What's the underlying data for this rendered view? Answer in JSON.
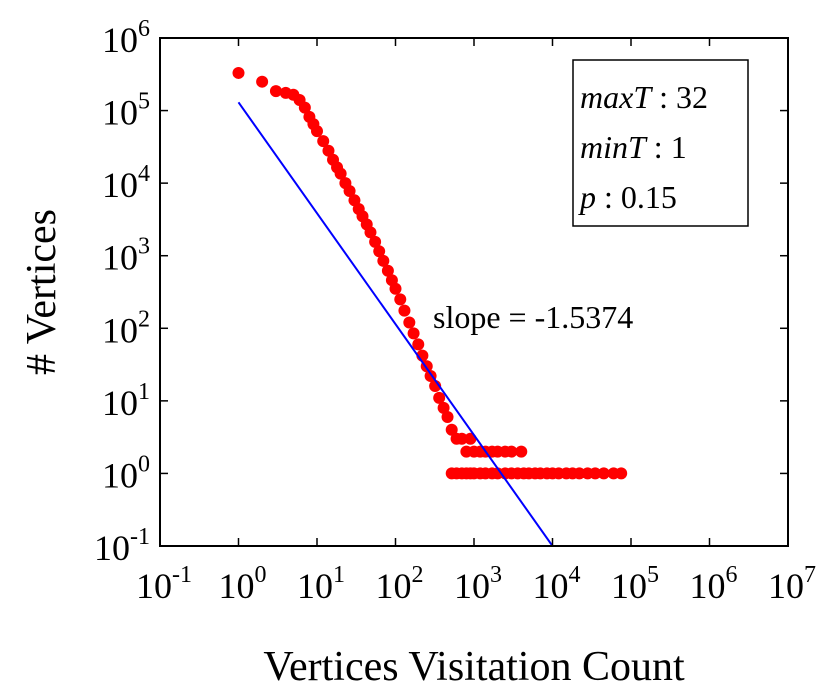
{
  "chart_data": {
    "type": "scatter",
    "xlabel": "Vertices Visitation Count",
    "ylabel": "# Vertices",
    "x_scale": "log",
    "y_scale": "log",
    "xlim": [
      0.1,
      10000000
    ],
    "ylim": [
      0.1,
      1000000
    ],
    "x_ticks": [
      {
        "base": "10",
        "exp": "-1",
        "value": 0.1
      },
      {
        "base": "10",
        "exp": "0",
        "value": 1
      },
      {
        "base": "10",
        "exp": "1",
        "value": 10
      },
      {
        "base": "10",
        "exp": "2",
        "value": 100
      },
      {
        "base": "10",
        "exp": "3",
        "value": 1000
      },
      {
        "base": "10",
        "exp": "4",
        "value": 10000
      },
      {
        "base": "10",
        "exp": "5",
        "value": 100000
      },
      {
        "base": "10",
        "exp": "6",
        "value": 1000000
      },
      {
        "base": "10",
        "exp": "7",
        "value": 10000000
      }
    ],
    "y_ticks": [
      {
        "base": "10",
        "exp": "-1",
        "value": 0.1
      },
      {
        "base": "10",
        "exp": "0",
        "value": 1
      },
      {
        "base": "10",
        "exp": "1",
        "value": 10
      },
      {
        "base": "10",
        "exp": "2",
        "value": 100
      },
      {
        "base": "10",
        "exp": "3",
        "value": 1000
      },
      {
        "base": "10",
        "exp": "4",
        "value": 10000
      },
      {
        "base": "10",
        "exp": "5",
        "value": 100000
      },
      {
        "base": "10",
        "exp": "6",
        "value": 1000000
      }
    ],
    "grid": false,
    "series": [
      {
        "color": "#ff0000",
        "marker": "circle",
        "points": [
          [
            1,
            330000
          ],
          [
            2,
            250000
          ],
          [
            3,
            185000
          ],
          [
            4,
            175000
          ],
          [
            5,
            165000
          ],
          [
            6,
            140000
          ],
          [
            7,
            110000
          ],
          [
            8,
            82000
          ],
          [
            9,
            65000
          ],
          [
            10,
            52000
          ],
          [
            12,
            38000
          ],
          [
            14,
            28000
          ],
          [
            16,
            21000
          ],
          [
            18,
            16500
          ],
          [
            20,
            13500
          ],
          [
            23,
            10000
          ],
          [
            26,
            7800
          ],
          [
            30,
            5800
          ],
          [
            34,
            4400
          ],
          [
            38,
            3500
          ],
          [
            43,
            2700
          ],
          [
            48,
            2100
          ],
          [
            55,
            1550
          ],
          [
            62,
            1150
          ],
          [
            70,
            850
          ],
          [
            80,
            620
          ],
          [
            90,
            460
          ],
          [
            100,
            350
          ],
          [
            115,
            250
          ],
          [
            130,
            175
          ],
          [
            150,
            120
          ],
          [
            170,
            85
          ],
          [
            195,
            60
          ],
          [
            220,
            42
          ],
          [
            250,
            30
          ],
          [
            280,
            22
          ],
          [
            320,
            16
          ],
          [
            360,
            11
          ],
          [
            410,
            8
          ],
          [
            460,
            6
          ],
          [
            520,
            4
          ],
          [
            600,
            3
          ],
          [
            700,
            3
          ],
          [
            800,
            2
          ],
          [
            900,
            3
          ],
          [
            1000,
            2
          ],
          [
            1200,
            2
          ],
          [
            1400,
            2
          ],
          [
            1700,
            2
          ],
          [
            2000,
            2
          ],
          [
            2500,
            2
          ],
          [
            3000,
            2
          ],
          [
            4000,
            2
          ],
          [
            520,
            1
          ],
          [
            600,
            1
          ],
          [
            700,
            1
          ],
          [
            800,
            1
          ],
          [
            900,
            1
          ],
          [
            1000,
            1
          ],
          [
            1200,
            1
          ],
          [
            1400,
            1
          ],
          [
            1700,
            1
          ],
          [
            2000,
            1
          ],
          [
            2500,
            1
          ],
          [
            3000,
            1
          ],
          [
            3600,
            1
          ],
          [
            4300,
            1
          ],
          [
            5000,
            1
          ],
          [
            6000,
            1
          ],
          [
            7000,
            1
          ],
          [
            8500,
            1
          ],
          [
            10000,
            1
          ],
          [
            12000,
            1
          ],
          [
            15000,
            1
          ],
          [
            18000,
            1
          ],
          [
            22000,
            1
          ],
          [
            28000,
            1
          ],
          [
            35000,
            1
          ],
          [
            45000,
            1
          ],
          [
            60000,
            1
          ],
          [
            75000,
            1
          ]
        ]
      },
      {
        "color": "#0000ff",
        "type": "line",
        "points": [
          [
            1,
            130000
          ],
          [
            10000,
            0.1
          ]
        ]
      }
    ],
    "annotation": "slope = -1.5374",
    "legend": {
      "position": "top-right",
      "lines": [
        {
          "var": "maxT",
          "value": " : 32"
        },
        {
          "var": "minT",
          "value": " : 1"
        },
        {
          "var": "p",
          "value": " : 0.15"
        }
      ]
    }
  }
}
